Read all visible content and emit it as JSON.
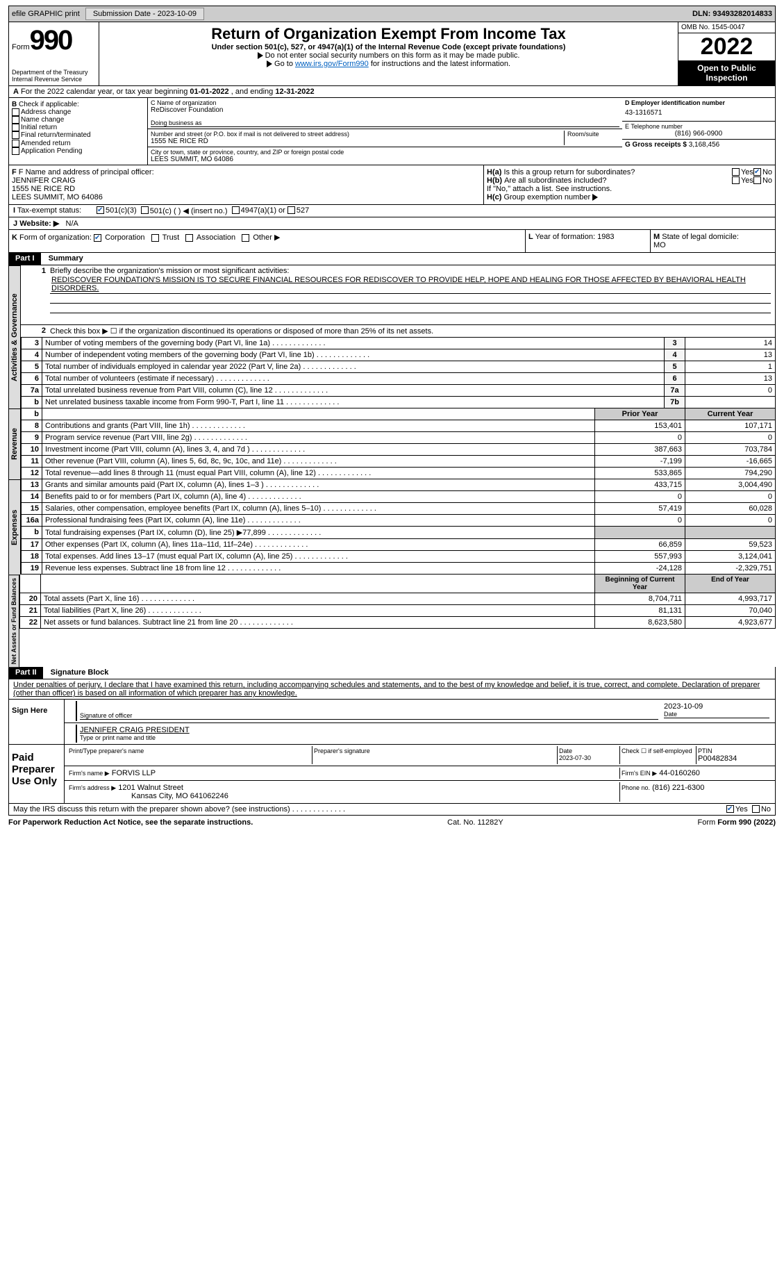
{
  "topbar": {
    "efile": "efile GRAPHIC print",
    "submission": "Submission Date - 2023-10-09",
    "dln": "DLN: 93493282014833"
  },
  "header": {
    "form_prefix": "Form",
    "form_no": "990",
    "dept": "Department of the Treasury",
    "irs": "Internal Revenue Service",
    "title": "Return of Organization Exempt From Income Tax",
    "under": "Under section 501(c), 527, or 4947(a)(1) of the Internal Revenue Code (except private foundations)",
    "ssn": "Do not enter social security numbers on this form as it may be made public.",
    "goto_pre": "Go to ",
    "goto_link": "www.irs.gov/Form990",
    "goto_post": " for instructions and the latest information.",
    "omb": "OMB No. 1545-0047",
    "year": "2022",
    "otp": "Open to Public Inspection"
  },
  "lineA": {
    "text_pre": "For the 2022 calendar year, or tax year beginning ",
    "begin": "01-01-2022",
    "mid": " , and ending ",
    "end": "12-31-2022"
  },
  "sectionB": {
    "check_label": "Check if applicable:",
    "items": [
      "Address change",
      "Name change",
      "Initial return",
      "Final return/terminated",
      "Amended return",
      "Application Pending"
    ],
    "c_name_lbl": "C Name of organization",
    "c_name": "ReDiscover Foundation",
    "dba_lbl": "Doing business as",
    "street_lbl": "Number and street (or P.O. box if mail is not delivered to street address)",
    "room_lbl": "Room/suite",
    "street": "1555 NE RICE RD",
    "city_lbl": "City or town, state or province, country, and ZIP or foreign postal code",
    "city": "LEES SUMMIT, MO  64086",
    "d_lbl": "D Employer identification number",
    "d_val": "43-1316571",
    "e_lbl": "E Telephone number",
    "e_val": "(816) 966-0900",
    "g_lbl": "G Gross receipts $",
    "g_val": "3,168,456"
  },
  "sectionF": {
    "f_lbl": "F Name and address of principal officer:",
    "f_name": "JENNIFER CRAIG",
    "f_addr1": "1555 NE RICE RD",
    "f_addr2": "LEES SUMMIT, MO  64086",
    "ha_lbl": "Is this a group return for subordinates?",
    "hb_lbl": "Are all subordinates included?",
    "h_note": "If \"No,\" attach a list. See instructions.",
    "hc_lbl": "Group exemption number",
    "ha": "H(a)",
    "hb": "H(b)",
    "hc": "H(c)",
    "yes": "Yes",
    "no": "No"
  },
  "sectionI": {
    "lbl": "Tax-exempt status:",
    "o1": "501(c)(3)",
    "o2": "501(c) (  ) ◀ (insert no.)",
    "o3": "4947(a)(1) or",
    "o4": "527"
  },
  "sectionJ": {
    "lbl": "Website: ▶",
    "val": "N/A"
  },
  "sectionK": {
    "lbl": "Form of organization:",
    "opts": [
      "Corporation",
      "Trust",
      "Association",
      "Other ▶"
    ],
    "l_lbl": "Year of formation:",
    "l_val": "1983",
    "m_lbl": "State of legal domicile:",
    "m_val": "MO"
  },
  "part1": {
    "title": "Part I",
    "sub": "Summary",
    "q1": "Briefly describe the organization's mission or most significant activities:",
    "mission": "REDISCOVER FOUNDATION'S MISSION IS TO SECURE FINANCIAL RESOURCES FOR REDISCOVER TO PROVIDE HELP, HOPE AND HEALING FOR THOSE AFFECTED BY BEHAVIORAL HEALTH DISORDERS.",
    "q2": "Check this box ▶ ☐ if the organization discontinued its operations or disposed of more than 25% of its net assets.",
    "vbar1": "Activities & Governance",
    "vbar2": "Revenue",
    "vbar3": "Expenses",
    "vbar4": "Net Assets or Fund Balances",
    "py": "Prior Year",
    "cy": "Current Year",
    "bcy": "Beginning of Current Year",
    "eoy": "End of Year",
    "rows_gov": [
      {
        "n": "3",
        "t": "Number of voting members of the governing body (Part VI, line 1a)",
        "b": "3",
        "v": "14"
      },
      {
        "n": "4",
        "t": "Number of independent voting members of the governing body (Part VI, line 1b)",
        "b": "4",
        "v": "13"
      },
      {
        "n": "5",
        "t": "Total number of individuals employed in calendar year 2022 (Part V, line 2a)",
        "b": "5",
        "v": "1"
      },
      {
        "n": "6",
        "t": "Total number of volunteers (estimate if necessary)",
        "b": "6",
        "v": "13"
      },
      {
        "n": "7a",
        "t": "Total unrelated business revenue from Part VIII, column (C), line 12",
        "b": "7a",
        "v": "0"
      },
      {
        "n": "b",
        "t": "Net unrelated business taxable income from Form 990-T, Part I, line 11",
        "b": "7b",
        "v": ""
      }
    ],
    "rows_rev": [
      {
        "n": "8",
        "t": "Contributions and grants (Part VIII, line 1h)",
        "py": "153,401",
        "cy": "107,171"
      },
      {
        "n": "9",
        "t": "Program service revenue (Part VIII, line 2g)",
        "py": "0",
        "cy": "0"
      },
      {
        "n": "10",
        "t": "Investment income (Part VIII, column (A), lines 3, 4, and 7d )",
        "py": "387,663",
        "cy": "703,784"
      },
      {
        "n": "11",
        "t": "Other revenue (Part VIII, column (A), lines 5, 6d, 8c, 9c, 10c, and 11e)",
        "py": "-7,199",
        "cy": "-16,665"
      },
      {
        "n": "12",
        "t": "Total revenue—add lines 8 through 11 (must equal Part VIII, column (A), line 12)",
        "py": "533,865",
        "cy": "794,290"
      }
    ],
    "rows_exp": [
      {
        "n": "13",
        "t": "Grants and similar amounts paid (Part IX, column (A), lines 1–3 )",
        "py": "433,715",
        "cy": "3,004,490"
      },
      {
        "n": "14",
        "t": "Benefits paid to or for members (Part IX, column (A), line 4)",
        "py": "0",
        "cy": "0"
      },
      {
        "n": "15",
        "t": "Salaries, other compensation, employee benefits (Part IX, column (A), lines 5–10)",
        "py": "57,419",
        "cy": "60,028"
      },
      {
        "n": "16a",
        "t": "Professional fundraising fees (Part IX, column (A), line 11e)",
        "py": "0",
        "cy": "0"
      },
      {
        "n": "b",
        "t": "Total fundraising expenses (Part IX, column (D), line 25) ▶77,899",
        "py": "shade",
        "cy": "shade"
      },
      {
        "n": "17",
        "t": "Other expenses (Part IX, column (A), lines 11a–11d, 11f–24e)",
        "py": "66,859",
        "cy": "59,523"
      },
      {
        "n": "18",
        "t": "Total expenses. Add lines 13–17 (must equal Part IX, column (A), line 25)",
        "py": "557,993",
        "cy": "3,124,041"
      },
      {
        "n": "19",
        "t": "Revenue less expenses. Subtract line 18 from line 12",
        "py": "-24,128",
        "cy": "-2,329,751"
      }
    ],
    "rows_net": [
      {
        "n": "20",
        "t": "Total assets (Part X, line 16)",
        "py": "8,704,711",
        "cy": "4,993,717"
      },
      {
        "n": "21",
        "t": "Total liabilities (Part X, line 26)",
        "py": "81,131",
        "cy": "70,040"
      },
      {
        "n": "22",
        "t": "Net assets or fund balances. Subtract line 21 from line 20",
        "py": "8,623,580",
        "cy": "4,923,677"
      }
    ]
  },
  "part2": {
    "title": "Part II",
    "sub": "Signature Block",
    "decl": "Under penalties of perjury, I declare that I have examined this return, including accompanying schedules and statements, and to the best of my knowledge and belief, it is true, correct, and complete. Declaration of preparer (other than officer) is based on all information of which preparer has any knowledge.",
    "sign_here": "Sign Here",
    "sig_off": "Signature of officer",
    "date": "Date",
    "sig_date": "2023-10-09",
    "name_title": "JENNIFER CRAIG PRESIDENT",
    "type_name": "Type or print name and title",
    "paid": "Paid Preparer Use Only",
    "prep_name_lbl": "Print/Type preparer's name",
    "prep_sig_lbl": "Preparer's signature",
    "prep_date_lbl": "Date",
    "prep_date": "2023-07-30",
    "self_emp": "Check ☐ if self-employed",
    "ptin_lbl": "PTIN",
    "ptin": "P00482834",
    "firm_name_lbl": "Firm's name  ▶",
    "firm_name": "FORVIS LLP",
    "firm_ein_lbl": "Firm's EIN ▶",
    "firm_ein": "44-0160260",
    "firm_addr_lbl": "Firm's address ▶",
    "firm_addr1": "1201 Walnut Street",
    "firm_addr2": "Kansas City, MO  641062246",
    "phone_lbl": "Phone no.",
    "phone": "(816) 221-6300",
    "may_irs": "May the IRS discuss this return with the preparer shown above? (see instructions)",
    "yes": "Yes",
    "no": "No"
  },
  "footer": {
    "pra": "For Paperwork Reduction Act Notice, see the separate instructions.",
    "cat": "Cat. No. 11282Y",
    "form": "Form 990 (2022)"
  }
}
